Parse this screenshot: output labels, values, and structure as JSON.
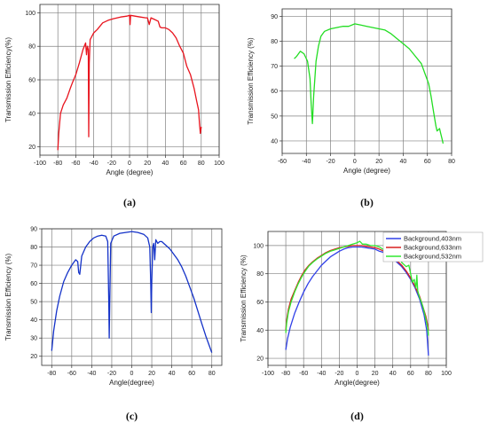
{
  "chart_data": [
    {
      "panel": "(a)",
      "type": "line",
      "xlabel": "Angle (degree)",
      "ylabel": "Transmission Efficiency(%)",
      "xlim": [
        -100,
        100
      ],
      "ylim": [
        15,
        105
      ],
      "xticks": [
        -100,
        -80,
        -60,
        -40,
        -20,
        0,
        20,
        40,
        60,
        80,
        100
      ],
      "yticks": [
        20,
        40,
        60,
        80,
        100
      ],
      "grid": true,
      "color": "#e8141e",
      "series": [
        {
          "points": [
            [
              -80,
              18
            ],
            [
              -79,
              28
            ],
            [
              -77,
              40
            ],
            [
              -74,
              45
            ],
            [
              -70,
              49
            ],
            [
              -66,
              55
            ],
            [
              -64,
              58
            ],
            [
              -60,
              63
            ],
            [
              -56,
              70
            ],
            [
              -52,
              78
            ],
            [
              -49,
              82
            ],
            [
              -48,
              75
            ],
            [
              -47,
              80
            ],
            [
              -46,
              78
            ],
            [
              -45.5,
              26
            ],
            [
              -45,
              70
            ],
            [
              -44,
              84
            ],
            [
              -40,
              88
            ],
            [
              -36,
              90
            ],
            [
              -30,
              94
            ],
            [
              -24,
              95.5
            ],
            [
              -18,
              96.5
            ],
            [
              -10,
              97.5
            ],
            [
              -3,
              98
            ],
            [
              0,
              98.5
            ],
            [
              0.6,
              93
            ],
            [
              1.2,
              98.5
            ],
            [
              6,
              98
            ],
            [
              12,
              97.5
            ],
            [
              18,
              97
            ],
            [
              20,
              97
            ],
            [
              22,
              93
            ],
            [
              24,
              97
            ],
            [
              28,
              96
            ],
            [
              32,
              95
            ],
            [
              34,
              91.5
            ],
            [
              36,
              91
            ],
            [
              40,
              91
            ],
            [
              44,
              90
            ],
            [
              48,
              88
            ],
            [
              52,
              85
            ],
            [
              56,
              80
            ],
            [
              60,
              76
            ],
            [
              64,
              68
            ],
            [
              68,
              63
            ],
            [
              72,
              55
            ],
            [
              75,
              47
            ],
            [
              77,
              42
            ],
            [
              78,
              34
            ],
            [
              79,
              28
            ],
            [
              80,
              32
            ]
          ]
        }
      ]
    },
    {
      "panel": "(b)",
      "type": "line",
      "xlabel": "Angle (degree)",
      "ylabel": "Transmission Efficiency (%)",
      "xlim": [
        -60,
        80
      ],
      "ylim": [
        35,
        93
      ],
      "xticks": [
        -60,
        -40,
        -20,
        0,
        20,
        40,
        60,
        80
      ],
      "yticks": [
        40,
        50,
        60,
        70,
        80,
        90
      ],
      "grid": true,
      "color": "#22dd22",
      "series": [
        {
          "points": [
            [
              -50,
              73
            ],
            [
              -48,
              74
            ],
            [
              -45,
              76
            ],
            [
              -42,
              75
            ],
            [
              -39,
              72
            ],
            [
              -37,
              65
            ],
            [
              -36,
              55
            ],
            [
              -35,
              47
            ],
            [
              -34,
              58
            ],
            [
              -32,
              72
            ],
            [
              -30,
              78
            ],
            [
              -28,
              82
            ],
            [
              -25,
              84
            ],
            [
              -20,
              85
            ],
            [
              -15,
              85.5
            ],
            [
              -10,
              86
            ],
            [
              -5,
              86
            ],
            [
              0,
              87
            ],
            [
              5,
              86.5
            ],
            [
              10,
              86
            ],
            [
              15,
              85.5
            ],
            [
              20,
              85
            ],
            [
              25,
              84.5
            ],
            [
              30,
              83
            ],
            [
              35,
              81
            ],
            [
              40,
              79
            ],
            [
              45,
              77
            ],
            [
              50,
              74
            ],
            [
              55,
              71
            ],
            [
              58,
              67
            ],
            [
              61,
              63
            ],
            [
              63,
              58
            ],
            [
              65,
              52
            ],
            [
              67,
              46
            ],
            [
              68,
              44
            ],
            [
              70,
              45
            ],
            [
              71,
              43
            ],
            [
              72,
              41
            ],
            [
              73,
              39
            ]
          ]
        }
      ]
    },
    {
      "panel": "(c)",
      "type": "line",
      "xlabel": "Angle(degree)",
      "ylabel": "Transmission Efficiency (%)",
      "xlim": [
        -90,
        90
      ],
      "ylim": [
        15,
        90
      ],
      "xticks": [
        -80,
        -60,
        -40,
        -20,
        0,
        20,
        40,
        60,
        80
      ],
      "yticks": [
        20,
        30,
        40,
        50,
        60,
        70,
        80,
        90
      ],
      "grid": true,
      "color": "#1432c8",
      "series": [
        {
          "points": [
            [
              -80,
              23
            ],
            [
              -78,
              34
            ],
            [
              -75,
              45
            ],
            [
              -72,
              53
            ],
            [
              -68,
              61
            ],
            [
              -64,
              66
            ],
            [
              -60,
              70
            ],
            [
              -56,
              73
            ],
            [
              -54,
              72
            ],
            [
              -53,
              66
            ],
            [
              -52,
              65
            ],
            [
              -50,
              75
            ],
            [
              -46,
              80
            ],
            [
              -42,
              83
            ],
            [
              -38,
              85
            ],
            [
              -34,
              86
            ],
            [
              -30,
              86.5
            ],
            [
              -26,
              86
            ],
            [
              -24,
              83
            ],
            [
              -23,
              50
            ],
            [
              -22.5,
              30
            ],
            [
              -22,
              50
            ],
            [
              -21,
              82
            ],
            [
              -18,
              86
            ],
            [
              -12,
              87.5
            ],
            [
              -6,
              88
            ],
            [
              0,
              88.5
            ],
            [
              6,
              88
            ],
            [
              12,
              87
            ],
            [
              16,
              85
            ],
            [
              18,
              80
            ],
            [
              19,
              60
            ],
            [
              19.5,
              44
            ],
            [
              20,
              62
            ],
            [
              21,
              80
            ],
            [
              22,
              82
            ],
            [
              23,
              73
            ],
            [
              24,
              84
            ],
            [
              26,
              82
            ],
            [
              28,
              83
            ],
            [
              30,
              83
            ],
            [
              34,
              81
            ],
            [
              38,
              79
            ],
            [
              42,
              76
            ],
            [
              46,
              73
            ],
            [
              50,
              69
            ],
            [
              54,
              64
            ],
            [
              58,
              58
            ],
            [
              62,
              52
            ],
            [
              66,
              45
            ],
            [
              70,
              38
            ],
            [
              74,
              31
            ],
            [
              78,
              25
            ],
            [
              80,
              22
            ]
          ]
        }
      ]
    },
    {
      "panel": "(d)",
      "type": "line",
      "xlabel": "Angle(degree)",
      "ylabel": "Transmission Efficiency (%)",
      "xlim": [
        -100,
        100
      ],
      "ylim": [
        15,
        110
      ],
      "xticks": [
        -100,
        -80,
        -60,
        -40,
        -20,
        0,
        20,
        40,
        60,
        80,
        100
      ],
      "yticks": [
        20,
        40,
        60,
        80,
        100
      ],
      "grid": true,
      "legend": "top-right",
      "series": [
        {
          "name": "Background,403nm",
          "color": "#3040e8",
          "points": [
            [
              -80,
              26
            ],
            [
              -78,
              34
            ],
            [
              -75,
              42
            ],
            [
              -70,
              52
            ],
            [
              -65,
              60
            ],
            [
              -60,
              67
            ],
            [
              -55,
              73
            ],
            [
              -50,
              78
            ],
            [
              -45,
              82
            ],
            [
              -40,
              86
            ],
            [
              -35,
              89
            ],
            [
              -30,
              92
            ],
            [
              -25,
              94
            ],
            [
              -20,
              96
            ],
            [
              -15,
              97.5
            ],
            [
              -10,
              98.5
            ],
            [
              -5,
              99
            ],
            [
              0,
              99
            ],
            [
              5,
              99
            ],
            [
              10,
              98.5
            ],
            [
              15,
              98
            ],
            [
              20,
              97.5
            ],
            [
              25,
              96
            ],
            [
              30,
              95
            ],
            [
              35,
              93
            ],
            [
              40,
              91
            ],
            [
              45,
              88
            ],
            [
              50,
              85
            ],
            [
              55,
              81
            ],
            [
              60,
              76
            ],
            [
              65,
              70
            ],
            [
              70,
              62
            ],
            [
              75,
              51
            ],
            [
              78,
              40
            ],
            [
              80,
              22
            ]
          ]
        },
        {
          "name": "Background,633nm",
          "color": "#d82020",
          "points": [
            [
              -80,
              40
            ],
            [
              -79,
              47
            ],
            [
              -77,
              55
            ],
            [
              -74,
              62
            ],
            [
              -70,
              68
            ],
            [
              -66,
              74
            ],
            [
              -62,
              79
            ],
            [
              -58,
              83
            ],
            [
              -54,
              86
            ],
            [
              -50,
              88.5
            ],
            [
              -45,
              91
            ],
            [
              -40,
              93
            ],
            [
              -35,
              95
            ],
            [
              -30,
              96.5
            ],
            [
              -25,
              97.5
            ],
            [
              -20,
              98.5
            ],
            [
              -15,
              99
            ],
            [
              -10,
              99.5
            ],
            [
              -5,
              100
            ],
            [
              0,
              100
            ],
            [
              5,
              100
            ],
            [
              10,
              99.5
            ],
            [
              15,
              99
            ],
            [
              20,
              98.5
            ],
            [
              25,
              97.5
            ],
            [
              30,
              96
            ],
            [
              35,
              94
            ],
            [
              40,
              92
            ],
            [
              45,
              89
            ],
            [
              50,
              86
            ],
            [
              55,
              82
            ],
            [
              60,
              77
            ],
            [
              65,
              71
            ],
            [
              70,
              64
            ],
            [
              74,
              56
            ],
            [
              77,
              50
            ],
            [
              79,
              44
            ],
            [
              80,
              40
            ]
          ]
        },
        {
          "name": "Background,532nm",
          "color": "#30e830",
          "points": [
            [
              -80,
              38
            ],
            [
              -79,
              45
            ],
            [
              -77,
              53
            ],
            [
              -74,
              60
            ],
            [
              -70,
              67
            ],
            [
              -66,
              73
            ],
            [
              -62,
              78
            ],
            [
              -58,
              82
            ],
            [
              -54,
              85.5
            ],
            [
              -50,
              88
            ],
            [
              -45,
              90.5
            ],
            [
              -40,
              92.5
            ],
            [
              -35,
              94.5
            ],
            [
              -30,
              96
            ],
            [
              -25,
              97
            ],
            [
              -20,
              98
            ],
            [
              -15,
              99
            ],
            [
              -10,
              100
            ],
            [
              -5,
              101
            ],
            [
              0,
              102
            ],
            [
              3,
              103
            ],
            [
              6,
              101
            ],
            [
              10,
              101
            ],
            [
              15,
              100
            ],
            [
              20,
              100
            ],
            [
              25,
              99
            ],
            [
              30,
              97
            ],
            [
              35,
              96
            ],
            [
              40,
              94
            ],
            [
              45,
              91
            ],
            [
              48,
              92
            ],
            [
              50,
              88
            ],
            [
              55,
              85
            ],
            [
              58,
              86
            ],
            [
              60,
              80
            ],
            [
              62,
              74
            ],
            [
              64,
              76
            ],
            [
              66,
              70
            ],
            [
              67,
              79
            ],
            [
              68,
              68
            ],
            [
              70,
              63
            ],
            [
              72,
              60
            ],
            [
              74,
              56
            ],
            [
              77,
              48
            ],
            [
              79,
              42
            ],
            [
              80,
              36
            ]
          ]
        }
      ]
    }
  ]
}
